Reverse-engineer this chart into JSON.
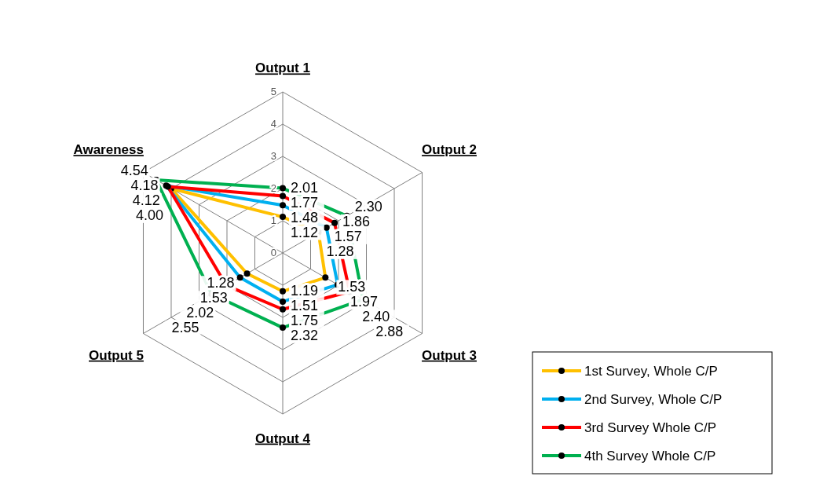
{
  "chart_data": {
    "type": "radar",
    "categories": [
      "Output 1",
      "Output 2",
      "Output 3",
      "Output 4",
      "Output 5",
      "Awareness"
    ],
    "series": [
      {
        "name": "1st Survey, Whole C/P",
        "color": "#ffc000",
        "values": [
          1.12,
          1.28,
          1.53,
          1.19,
          1.28,
          4.0
        ],
        "value_labels": [
          "1.12",
          "1.28",
          "1.53",
          "1.19",
          "1.28",
          "4.00"
        ]
      },
      {
        "name": "2nd Survey, Whole C/P",
        "color": "#00b0f0",
        "values": [
          1.48,
          1.57,
          1.97,
          1.51,
          1.53,
          4.18
        ],
        "value_labels": [
          "1.48",
          "1.57",
          "1.97",
          "1.51",
          "1.53",
          "4.18"
        ]
      },
      {
        "name": "3rd Survey Whole C/P",
        "color": "#ff0000",
        "values": [
          1.77,
          1.86,
          2.4,
          1.75,
          2.02,
          4.12
        ],
        "value_labels": [
          "1.77",
          "1.86",
          "2.40",
          "1.75",
          "2.02",
          "4.12"
        ]
      },
      {
        "name": "4th Survey Whole C/P",
        "color": "#00b050",
        "values": [
          2.01,
          2.3,
          2.88,
          2.32,
          2.55,
          4.54
        ],
        "value_labels": [
          "2.01",
          "2.30",
          "2.88",
          "2.32",
          "2.55",
          "4.54"
        ]
      }
    ],
    "ylim": [
      0,
      5
    ],
    "yticks": [
      0,
      1,
      2,
      3,
      4,
      5
    ],
    "data_labels": true,
    "legend": "bottom right",
    "marker": "circle",
    "grid": true
  }
}
